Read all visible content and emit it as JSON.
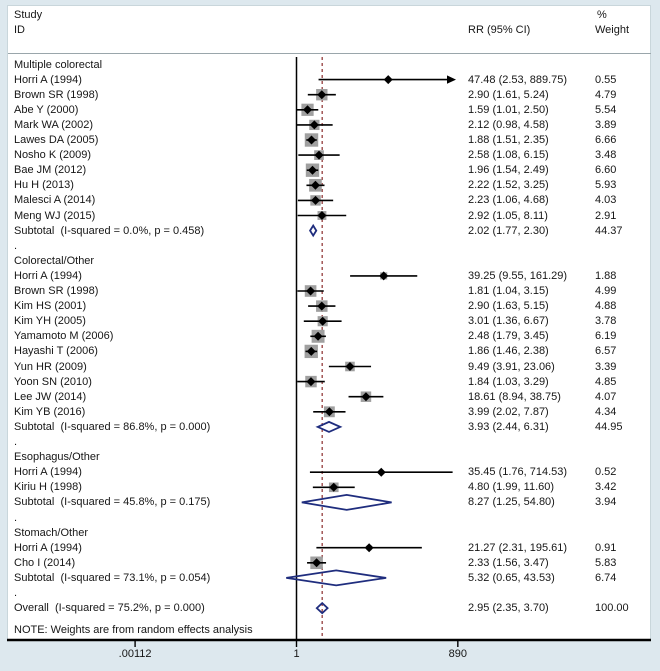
{
  "header": {
    "study_line1": "Study",
    "study_line2": "ID",
    "rr_col": "RR (95% CI)",
    "weight_line1": "%",
    "weight_line2": "Weight"
  },
  "note": "NOTE: Weights are from random effects analysis",
  "separator_label": ".",
  "colors": {
    "background": "#dde8ee",
    "plot_background": "#ffffff",
    "ci_line": "#000000",
    "point_marker": "#000000",
    "weight_box": "#a0a0a0",
    "pooled_diamond": "#1f2d7e",
    "null_line": "#000000",
    "overall_dashed_line": "#9b4a4a",
    "axis_line": "#000000"
  },
  "chart_data": {
    "type": "forest",
    "x_axis": {
      "scale": "log",
      "ticks": [
        0.00112,
        1,
        890
      ],
      "tick_labels": [
        ".00112",
        "1",
        "890"
      ]
    },
    "null_value": 1,
    "dashed_line_rr": 2.95,
    "groups": [
      {
        "label": "Multiple colorectal",
        "studies": [
          {
            "label": "Horri A (1994)",
            "ci": "47.48 (2.53, 889.75)",
            "weight": "0.55"
          },
          {
            "label": "Brown SR (1998)",
            "ci": "2.90 (1.61, 5.24)",
            "weight": "4.79"
          },
          {
            "label": "Abe Y (2000)",
            "ci": "1.59 (1.01, 2.50)",
            "weight": "5.54"
          },
          {
            "label": "Mark WA (2002)",
            "ci": "2.12 (0.98, 4.58)",
            "weight": "3.89"
          },
          {
            "label": "Lawes DA (2005)",
            "ci": "1.88 (1.51, 2.35)",
            "weight": "6.66"
          },
          {
            "label": "Nosho K (2009)",
            "ci": "2.58 (1.08, 6.15)",
            "weight": "3.48"
          },
          {
            "label": "Bae JM (2012)",
            "ci": "1.96 (1.54, 2.49)",
            "weight": "6.60"
          },
          {
            "label": "Hu H (2013)",
            "ci": "2.22 (1.52, 3.25)",
            "weight": "5.93"
          },
          {
            "label": "Malesci A (2014)",
            "ci": "2.23 (1.06, 4.68)",
            "weight": "4.03"
          },
          {
            "label": "Meng WJ (2015)",
            "ci": "2.92 (1.05, 8.11)",
            "weight": "2.91"
          }
        ],
        "subtotal": {
          "label": "Subtotal  (I-squared = 0.0%, p = 0.458)",
          "ci": "2.02 (1.77, 2.30)",
          "weight": "44.37"
        }
      },
      {
        "label": "Colorectal/Other",
        "studies": [
          {
            "label": "Horri A (1994)",
            "ci": "39.25 (9.55, 161.29)",
            "weight": "1.88"
          },
          {
            "label": "Brown SR (1998)",
            "ci": "1.81 (1.04, 3.15)",
            "weight": "4.99"
          },
          {
            "label": "Kim HS (2001)",
            "ci": "2.90 (1.63, 5.15)",
            "weight": "4.88"
          },
          {
            "label": "Kim YH (2005)",
            "ci": "3.01 (1.36, 6.67)",
            "weight": "3.78"
          },
          {
            "label": "Yamamoto M (2006)",
            "ci": "2.48 (1.79, 3.45)",
            "weight": "6.19"
          },
          {
            "label": "Hayashi T (2006)",
            "ci": "1.86 (1.46, 2.38)",
            "weight": "6.57"
          },
          {
            "label": "Yun HR (2009)",
            "ci": "9.49 (3.91, 23.06)",
            "weight": "3.39"
          },
          {
            "label": "Yoon SN (2010)",
            "ci": "1.84 (1.03, 3.29)",
            "weight": "4.85"
          },
          {
            "label": "Lee JW (2014)",
            "ci": "18.61 (8.94, 38.75)",
            "weight": "4.07"
          },
          {
            "label": "Kim YB (2016)",
            "ci": "3.99 (2.02, 7.87)",
            "weight": "4.34"
          }
        ],
        "subtotal": {
          "label": "Subtotal  (I-squared = 86.8%, p = 0.000)",
          "ci": "3.93 (2.44, 6.31)",
          "weight": "44.95"
        }
      },
      {
        "label": "Esophagus/Other",
        "studies": [
          {
            "label": "Horri A (1994)",
            "ci": "35.45 (1.76, 714.53)",
            "weight": "0.52"
          },
          {
            "label": "Kiriu H (1998)",
            "ci": "4.80 (1.99, 11.60)",
            "weight": "3.42"
          }
        ],
        "subtotal": {
          "label": "Subtotal  (I-squared = 45.8%, p = 0.175)",
          "ci": "8.27 (1.25, 54.80)",
          "weight": "3.94"
        }
      },
      {
        "label": "Stomach/Other",
        "studies": [
          {
            "label": "Horri A (1994)",
            "ci": "21.27 (2.31, 195.61)",
            "weight": "0.91"
          },
          {
            "label": "Cho I (2014)",
            "ci": "2.33 (1.56, 3.47)",
            "weight": "5.83"
          }
        ],
        "subtotal": {
          "label": "Subtotal  (I-squared = 73.1%, p = 0.054)",
          "ci": "5.32 (0.65, 43.53)",
          "weight": "6.74"
        }
      }
    ],
    "overall": {
      "label": "Overall  (I-squared = 75.2%, p = 0.000)",
      "ci": "2.95 (2.35, 3.70)",
      "weight": "100.00"
    }
  }
}
